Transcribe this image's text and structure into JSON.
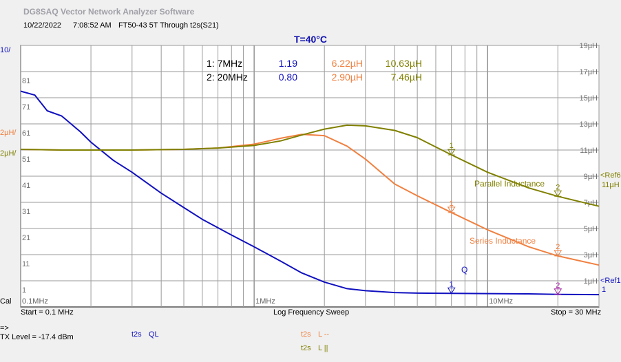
{
  "app_title": "DG8SAQ Vector Network Analyzer Software",
  "header": {
    "date": "10/22/2022",
    "time": "7:08:52 AM",
    "measurement": "FT50-43 5T Through t2s(S21)"
  },
  "temperature": "T=40°C",
  "left_axis": {
    "q_scale": "10/",
    "ls_scale": "2µH/",
    "lp_scale": "2µH/",
    "ticks": [
      "81",
      "71",
      "61",
      "51",
      "41",
      "31",
      "21",
      "11",
      "1"
    ]
  },
  "right_axis": {
    "ticks": [
      "19µH",
      "17µH",
      "15µH",
      "13µH",
      "11µH",
      "9µH",
      "7µH",
      "5µH",
      "3µH",
      "1µH"
    ],
    "ref_top": "<Ref6",
    "ref_top_value": "11µH",
    "ref_bottom": "<Ref1",
    "ref_bottom_value": "1"
  },
  "x_axis_labels": [
    "0.1MHz",
    "1MHz",
    "10MHz"
  ],
  "cal_label": "Cal",
  "footer": {
    "start": "Start = 0.1 MHz",
    "sweep": "Log Frequency Sweep",
    "stop": "Stop = 30 MHz",
    "arrow": "=>",
    "tx_level": "TX Level = -17.4 dBm",
    "legend_ql_src": "t2s",
    "legend_ql": "QL",
    "legend_ls_src": "t2s",
    "legend_ls": "L --",
    "legend_lp_src": "t2s",
    "legend_lp": "L ||"
  },
  "markers_table": [
    {
      "label": "1: 7MHz",
      "q": "1.19",
      "ls": "6.22µH",
      "lp": "10.63µH"
    },
    {
      "label": "2: 20MHz",
      "q": "0.80",
      "ls": "2.90µH",
      "lp": "7.46µH"
    }
  ],
  "series_labels": {
    "parallel": "Parallel Inductance",
    "series": "Series Inductance",
    "q": "Q"
  },
  "marker_ids": [
    "1",
    "2"
  ],
  "colors": {
    "q": "#1010c0",
    "series": "#f08040",
    "parallel": "#808000",
    "grid": "#808080",
    "temp": "#1010b0"
  },
  "chart_data": {
    "type": "line",
    "xscale": "log",
    "xlim": [
      0.1,
      30
    ],
    "ylim_q": [
      -4,
      96
    ],
    "ylim_l": [
      -1,
      19
    ],
    "series": [
      {
        "name": "Q",
        "axis": "q",
        "x": [
          0.1,
          0.115,
          0.13,
          0.15,
          0.18,
          0.2,
          0.25,
          0.3,
          0.4,
          0.5,
          0.6,
          0.8,
          1.0,
          1.3,
          1.6,
          2.0,
          2.5,
          3.0,
          4.0,
          5.0,
          7.0,
          10,
          15,
          20,
          30
        ],
        "y": [
          78.5,
          77,
          71,
          69,
          63,
          59,
          52,
          47.5,
          39.5,
          34,
          29.5,
          23.5,
          19,
          13.5,
          9,
          5.5,
          3,
          2.2,
          1.5,
          1.3,
          1.19,
          1.1,
          1.0,
          0.8,
          0.7
        ]
      },
      {
        "name": "Series Inductance",
        "axis": "l",
        "x": [
          0.1,
          0.15,
          0.2,
          0.3,
          0.5,
          0.7,
          1.0,
          1.3,
          1.6,
          2.0,
          2.5,
          3.0,
          4.0,
          5.0,
          7.0,
          10,
          15,
          20,
          30
        ],
        "y": [
          11.05,
          11.0,
          11.0,
          11.0,
          11.05,
          11.15,
          11.45,
          11.9,
          12.2,
          12.1,
          11.3,
          10.3,
          8.4,
          7.5,
          6.22,
          4.9,
          3.6,
          2.9,
          2.2
        ]
      },
      {
        "name": "Parallel Inductance",
        "axis": "l",
        "x": [
          0.1,
          0.15,
          0.2,
          0.3,
          0.5,
          0.7,
          1.0,
          1.3,
          1.6,
          2.0,
          2.5,
          3.0,
          4.0,
          5.0,
          7.0,
          10,
          15,
          20,
          30
        ],
        "y": [
          11.05,
          11.0,
          11.0,
          11.0,
          11.05,
          11.15,
          11.35,
          11.7,
          12.15,
          12.6,
          12.9,
          12.85,
          12.5,
          11.95,
          10.63,
          9.3,
          8.1,
          7.46,
          6.7
        ]
      }
    ],
    "markers": [
      {
        "id": "1",
        "x": 7,
        "q": 1.19,
        "ls": 6.22,
        "lp": 10.63
      },
      {
        "id": "2",
        "x": 20,
        "q": 0.8,
        "ls": 2.9,
        "lp": 7.46
      }
    ]
  }
}
